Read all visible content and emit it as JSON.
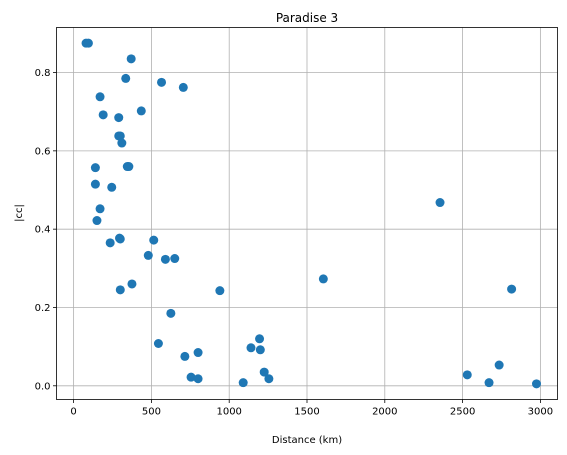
{
  "chart_data": {
    "type": "scatter",
    "title": "Paradise 3",
    "xlabel": "Distance (km)",
    "ylabel": "|cc|",
    "xlim": [
      -110,
      3110
    ],
    "ylim": [
      -0.035,
      0.915
    ],
    "xticks": [
      0,
      500,
      1000,
      1500,
      2000,
      2500,
      3000
    ],
    "yticks": [
      0.0,
      0.2,
      0.4,
      0.6,
      0.8
    ],
    "xtick_labels": [
      "0",
      "500",
      "1000",
      "1500",
      "2000",
      "2500",
      "3000"
    ],
    "ytick_labels": [
      "0.0",
      "0.2",
      "0.4",
      "0.6",
      "0.8"
    ],
    "grid": true,
    "marker_color": "#1f77b4",
    "series": [
      {
        "points": [
          [
            80,
            0.875
          ],
          [
            95,
            0.875
          ],
          [
            370,
            0.835
          ],
          [
            335,
            0.785
          ],
          [
            565,
            0.775
          ],
          [
            705,
            0.762
          ],
          [
            170,
            0.738
          ],
          [
            190,
            0.692
          ],
          [
            435,
            0.702
          ],
          [
            290,
            0.685
          ],
          [
            290,
            0.638
          ],
          [
            300,
            0.638
          ],
          [
            310,
            0.62
          ],
          [
            140,
            0.557
          ],
          [
            345,
            0.56
          ],
          [
            355,
            0.56
          ],
          [
            140,
            0.515
          ],
          [
            245,
            0.507
          ],
          [
            170,
            0.452
          ],
          [
            150,
            0.422
          ],
          [
            2355,
            0.468
          ],
          [
            295,
            0.377
          ],
          [
            300,
            0.375
          ],
          [
            515,
            0.372
          ],
          [
            235,
            0.365
          ],
          [
            480,
            0.333
          ],
          [
            590,
            0.323
          ],
          [
            650,
            0.325
          ],
          [
            1605,
            0.273
          ],
          [
            375,
            0.26
          ],
          [
            300,
            0.245
          ],
          [
            940,
            0.243
          ],
          [
            2815,
            0.247
          ],
          [
            625,
            0.185
          ],
          [
            1195,
            0.12
          ],
          [
            545,
            0.108
          ],
          [
            1140,
            0.097
          ],
          [
            1200,
            0.092
          ],
          [
            800,
            0.085
          ],
          [
            715,
            0.075
          ],
          [
            2735,
            0.053
          ],
          [
            1225,
            0.035
          ],
          [
            2530,
            0.028
          ],
          [
            755,
            0.022
          ],
          [
            800,
            0.018
          ],
          [
            1255,
            0.018
          ],
          [
            1090,
            0.008
          ],
          [
            2670,
            0.008
          ],
          [
            2975,
            0.005
          ]
        ]
      }
    ]
  }
}
